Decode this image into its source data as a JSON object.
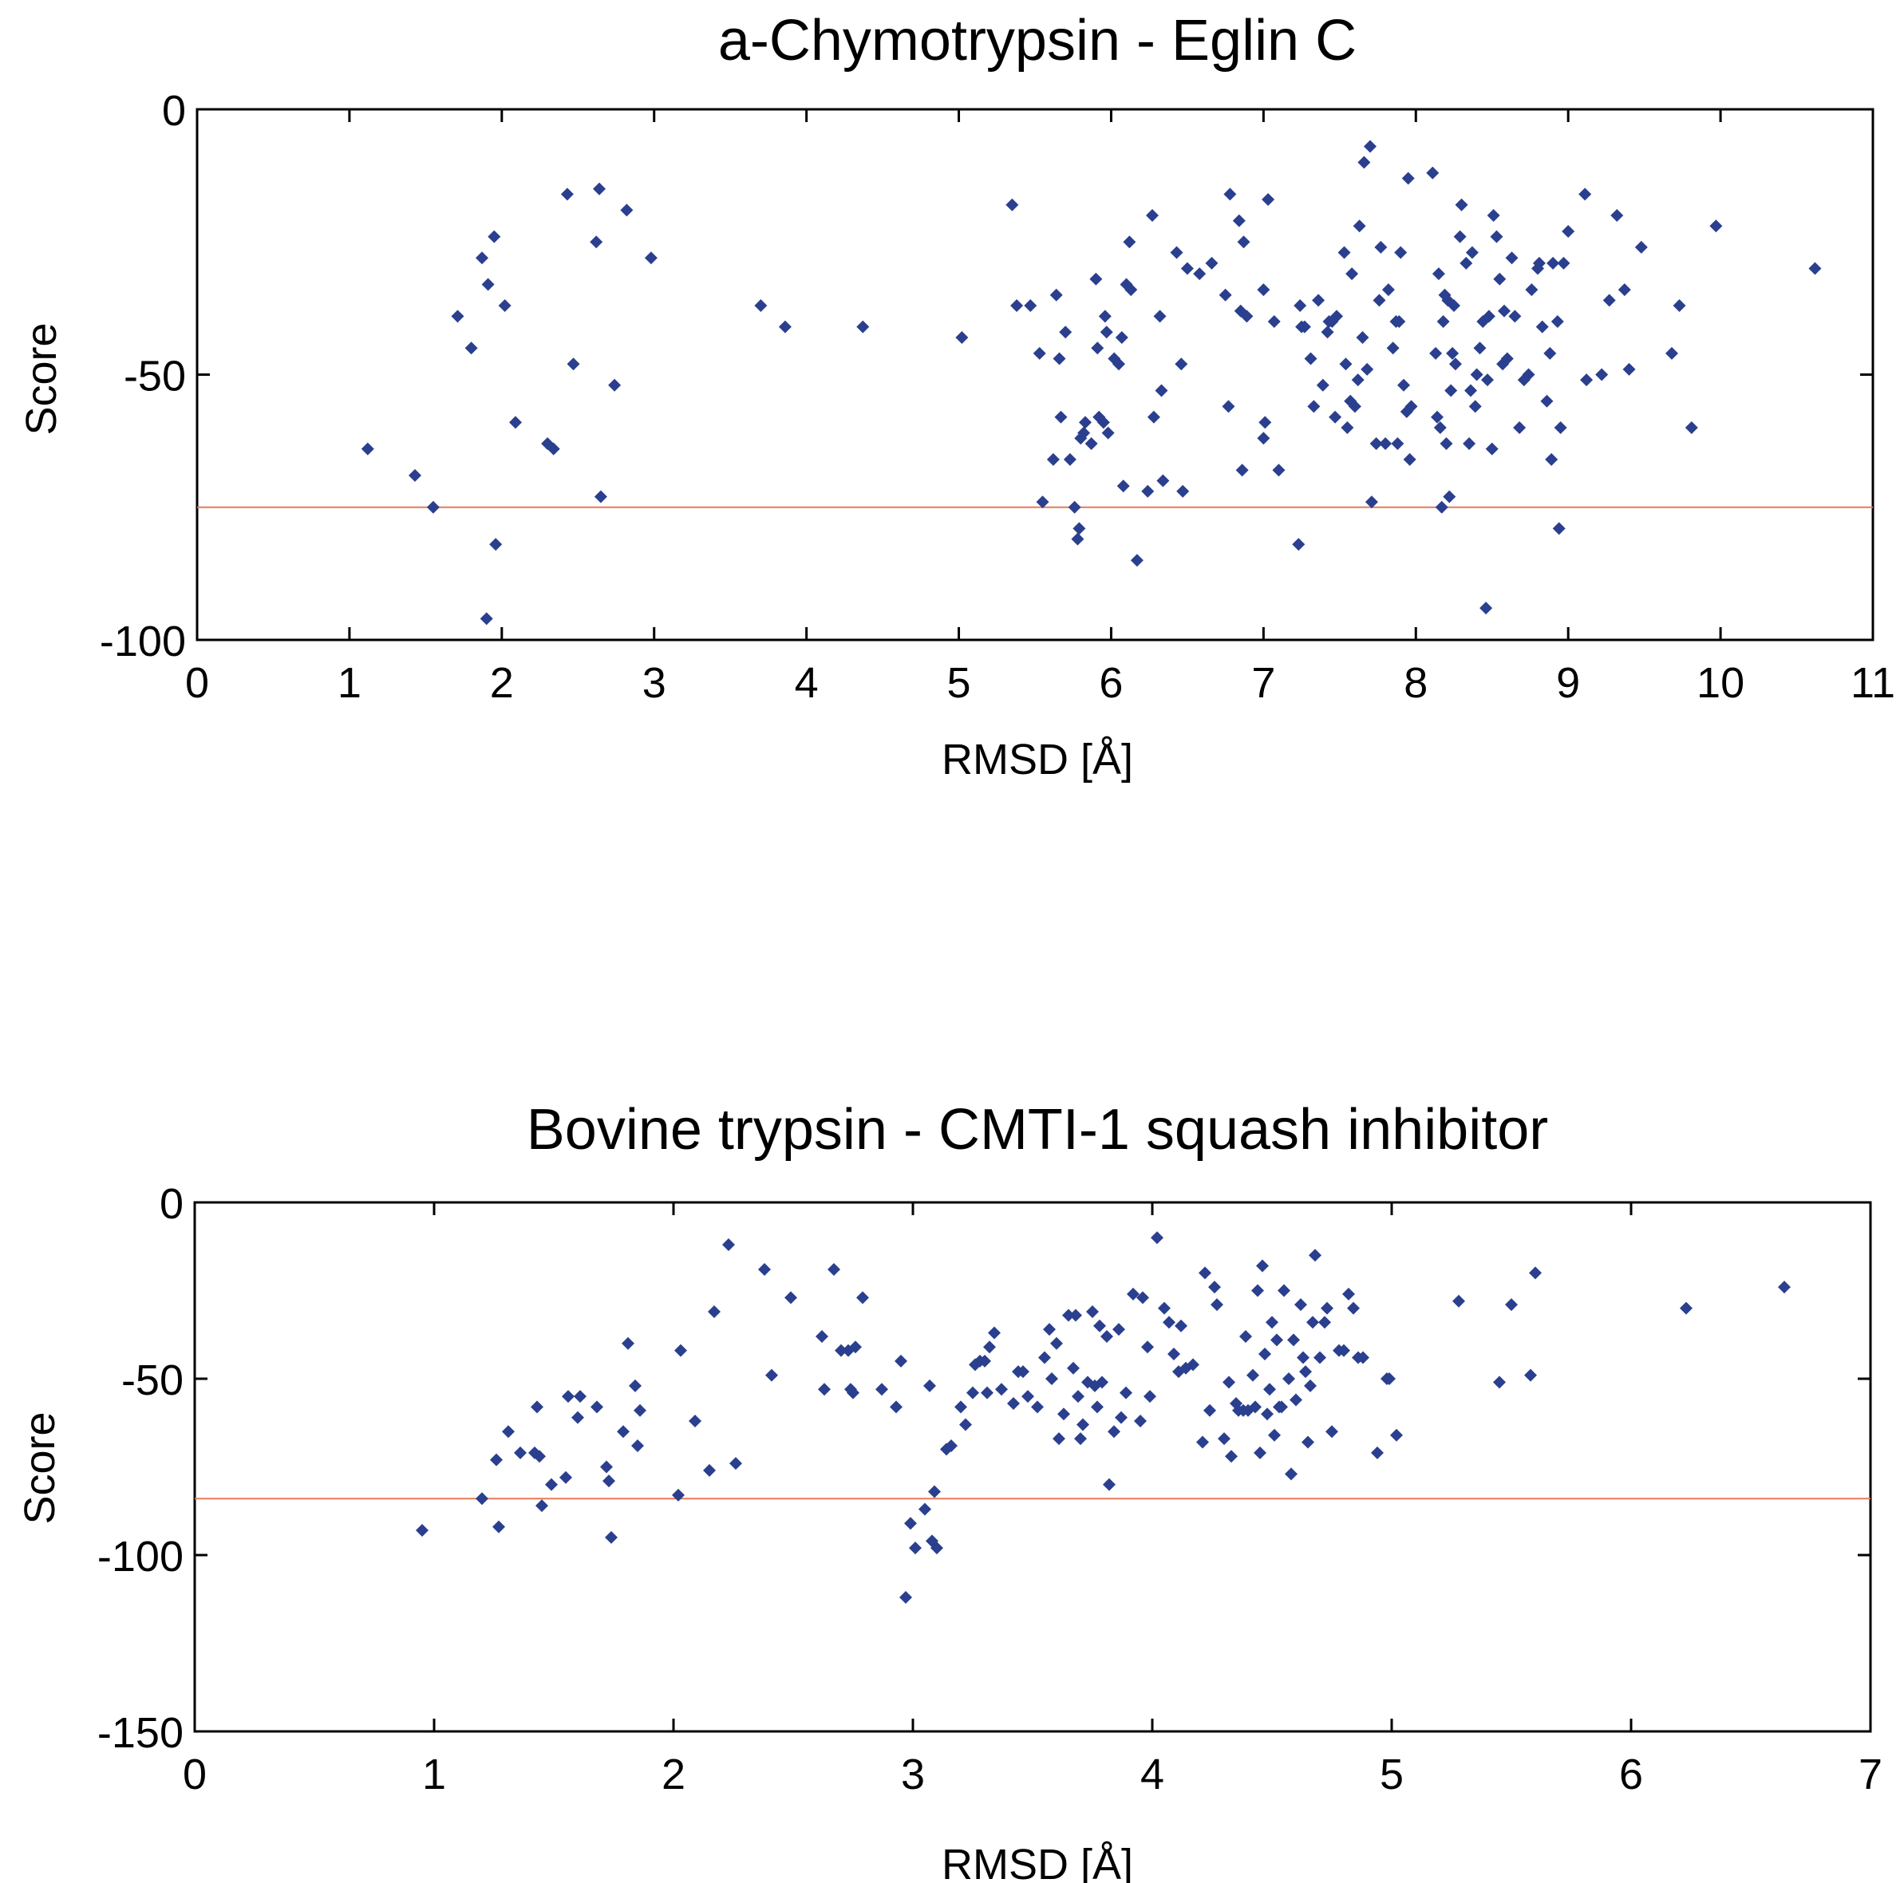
{
  "chart_data": [
    {
      "type": "scatter",
      "title": "a-Chymotrypsin - Eglin C",
      "xlabel": "RMSD [Å]",
      "ylabel": "Score",
      "xlim": [
        0,
        11
      ],
      "ylim": [
        -100,
        0
      ],
      "xticks": [
        0,
        1,
        2,
        3,
        4,
        5,
        6,
        7,
        8,
        9,
        10,
        11
      ],
      "yticks": [
        0,
        -50,
        -100
      ],
      "grid": false,
      "threshold": -75,
      "colors": {
        "points": "#2b3f8f",
        "threshold": "#e87a5a"
      },
      "points": [
        [
          1.12,
          -64
        ],
        [
          1.43,
          -69
        ],
        [
          1.55,
          -75
        ],
        [
          1.71,
          -39
        ],
        [
          1.8,
          -45
        ],
        [
          1.87,
          -28
        ],
        [
          1.9,
          -96
        ],
        [
          1.91,
          -33
        ],
        [
          1.95,
          -24
        ],
        [
          1.96,
          -82
        ],
        [
          2.02,
          -37
        ],
        [
          2.09,
          -59
        ],
        [
          2.3,
          -63
        ],
        [
          2.34,
          -64
        ],
        [
          2.43,
          -16
        ],
        [
          2.47,
          -48
        ],
        [
          2.62,
          -25
        ],
        [
          2.64,
          -15
        ],
        [
          2.65,
          -73
        ],
        [
          2.74,
          -52
        ],
        [
          2.82,
          -19
        ],
        [
          2.98,
          -28
        ],
        [
          3.7,
          -37
        ],
        [
          3.86,
          -41
        ],
        [
          4.37,
          -41
        ],
        [
          5.02,
          -43
        ],
        [
          5.35,
          -18
        ],
        [
          5.38,
          -37
        ],
        [
          5.47,
          -37
        ],
        [
          5.53,
          -46
        ],
        [
          5.55,
          -74
        ],
        [
          5.62,
          -66
        ],
        [
          5.64,
          -35
        ],
        [
          5.66,
          -47
        ],
        [
          5.67,
          -58
        ],
        [
          5.7,
          -42
        ],
        [
          5.73,
          -66
        ],
        [
          5.76,
          -75
        ],
        [
          5.78,
          -81
        ],
        [
          5.79,
          -79
        ],
        [
          5.8,
          -62
        ],
        [
          5.82,
          -61
        ],
        [
          5.83,
          -59
        ],
        [
          5.87,
          -63
        ],
        [
          5.9,
          -32
        ],
        [
          5.91,
          -45
        ],
        [
          5.92,
          -58
        ],
        [
          5.95,
          -59
        ],
        [
          5.96,
          -39
        ],
        [
          5.97,
          -42
        ],
        [
          5.98,
          -61
        ],
        [
          6.02,
          -47
        ],
        [
          6.05,
          -48
        ],
        [
          6.07,
          -43
        ],
        [
          6.08,
          -71
        ],
        [
          6.1,
          -33
        ],
        [
          6.12,
          -25
        ],
        [
          6.13,
          -34
        ],
        [
          6.17,
          -85
        ],
        [
          6.24,
          -72
        ],
        [
          6.27,
          -20
        ],
        [
          6.28,
          -58
        ],
        [
          6.32,
          -39
        ],
        [
          6.33,
          -53
        ],
        [
          6.34,
          -70
        ],
        [
          6.43,
          -27
        ],
        [
          6.46,
          -48
        ],
        [
          6.47,
          -72
        ],
        [
          6.5,
          -30
        ],
        [
          6.58,
          -31
        ],
        [
          6.66,
          -29
        ],
        [
          6.75,
          -35
        ],
        [
          6.77,
          -56
        ],
        [
          6.78,
          -16
        ],
        [
          6.84,
          -21
        ],
        [
          6.85,
          -38
        ],
        [
          6.86,
          -68
        ],
        [
          6.87,
          -25
        ],
        [
          6.89,
          -39
        ],
        [
          7.0,
          -34
        ],
        [
          7.0,
          -62
        ],
        [
          7.01,
          -59
        ],
        [
          7.03,
          -17
        ],
        [
          7.07,
          -40
        ],
        [
          7.1,
          -68
        ],
        [
          7.23,
          -82
        ],
        [
          7.24,
          -37
        ],
        [
          7.25,
          -41
        ],
        [
          7.27,
          -41
        ],
        [
          7.31,
          -47
        ],
        [
          7.33,
          -56
        ],
        [
          7.36,
          -36
        ],
        [
          7.39,
          -52
        ],
        [
          7.42,
          -42
        ],
        [
          7.43,
          -40
        ],
        [
          7.45,
          -40
        ],
        [
          7.47,
          -58
        ],
        [
          7.48,
          -39
        ],
        [
          7.53,
          -27
        ],
        [
          7.54,
          -48
        ],
        [
          7.55,
          -60
        ],
        [
          7.57,
          -55
        ],
        [
          7.58,
          -31
        ],
        [
          7.6,
          -56
        ],
        [
          7.62,
          -51
        ],
        [
          7.63,
          -22
        ],
        [
          7.65,
          -43
        ],
        [
          7.66,
          -10
        ],
        [
          7.68,
          -49
        ],
        [
          7.7,
          -7
        ],
        [
          7.71,
          -74
        ],
        [
          7.74,
          -63
        ],
        [
          7.76,
          -36
        ],
        [
          7.77,
          -26
        ],
        [
          7.8,
          -63
        ],
        [
          7.82,
          -34
        ],
        [
          7.85,
          -45
        ],
        [
          7.87,
          -40
        ],
        [
          7.88,
          -63
        ],
        [
          7.89,
          -40
        ],
        [
          7.9,
          -27
        ],
        [
          7.92,
          -52
        ],
        [
          7.94,
          -57
        ],
        [
          7.95,
          -13
        ],
        [
          7.96,
          -66
        ],
        [
          7.97,
          -56
        ],
        [
          8.11,
          -12
        ],
        [
          8.13,
          -46
        ],
        [
          8.14,
          -58
        ],
        [
          8.15,
          -31
        ],
        [
          8.16,
          -60
        ],
        [
          8.17,
          -75
        ],
        [
          8.18,
          -40
        ],
        [
          8.19,
          -35
        ],
        [
          8.2,
          -63
        ],
        [
          8.21,
          -36
        ],
        [
          8.22,
          -73
        ],
        [
          8.23,
          -53
        ],
        [
          8.24,
          -46
        ],
        [
          8.25,
          -37
        ],
        [
          8.26,
          -48
        ],
        [
          8.29,
          -24
        ],
        [
          8.3,
          -18
        ],
        [
          8.33,
          -29
        ],
        [
          8.35,
          -63
        ],
        [
          8.36,
          -53
        ],
        [
          8.37,
          -27
        ],
        [
          8.39,
          -56
        ],
        [
          8.4,
          -50
        ],
        [
          8.42,
          -45
        ],
        [
          8.44,
          -40
        ],
        [
          8.46,
          -94
        ],
        [
          8.47,
          -51
        ],
        [
          8.48,
          -39
        ],
        [
          8.5,
          -64
        ],
        [
          8.51,
          -20
        ],
        [
          8.53,
          -24
        ],
        [
          8.55,
          -32
        ],
        [
          8.57,
          -48
        ],
        [
          8.58,
          -38
        ],
        [
          8.6,
          -47
        ],
        [
          8.63,
          -28
        ],
        [
          8.65,
          -39
        ],
        [
          8.68,
          -60
        ],
        [
          8.71,
          -51
        ],
        [
          8.74,
          -50
        ],
        [
          8.76,
          -34
        ],
        [
          8.8,
          -30
        ],
        [
          8.81,
          -29
        ],
        [
          8.83,
          -41
        ],
        [
          8.86,
          -55
        ],
        [
          8.88,
          -46
        ],
        [
          8.89,
          -66
        ],
        [
          8.9,
          -29
        ],
        [
          8.93,
          -40
        ],
        [
          8.94,
          -79
        ],
        [
          8.95,
          -60
        ],
        [
          8.97,
          -29
        ],
        [
          9.0,
          -23
        ],
        [
          9.11,
          -16
        ],
        [
          9.12,
          -51
        ],
        [
          9.22,
          -50
        ],
        [
          9.27,
          -36
        ],
        [
          9.32,
          -20
        ],
        [
          9.37,
          -34
        ],
        [
          9.4,
          -49
        ],
        [
          9.48,
          -26
        ],
        [
          9.68,
          -46
        ],
        [
          9.73,
          -37
        ],
        [
          9.81,
          -60
        ],
        [
          9.97,
          -22
        ],
        [
          10.62,
          -30
        ]
      ]
    },
    {
      "type": "scatter",
      "title": "Bovine trypsin - CMTI-1 squash inhibitor",
      "xlabel": "RMSD [Å]",
      "ylabel": "Score",
      "xlim": [
        0,
        7
      ],
      "ylim": [
        -150,
        0
      ],
      "xticks": [
        0,
        1,
        2,
        3,
        4,
        5,
        6,
        7
      ],
      "yticks": [
        0,
        -50,
        -100,
        -150
      ],
      "grid": false,
      "threshold": -84,
      "colors": {
        "points": "#2b3f8f",
        "threshold": "#e87a5a"
      },
      "points": [
        [
          0.95,
          -93
        ],
        [
          1.2,
          -84
        ],
        [
          1.26,
          -73
        ],
        [
          1.27,
          -92
        ],
        [
          1.31,
          -65
        ],
        [
          1.36,
          -71
        ],
        [
          1.42,
          -71
        ],
        [
          1.44,
          -72
        ],
        [
          1.43,
          -58
        ],
        [
          1.45,
          -86
        ],
        [
          1.49,
          -80
        ],
        [
          1.55,
          -78
        ],
        [
          1.56,
          -55
        ],
        [
          1.6,
          -61
        ],
        [
          1.61,
          -55
        ],
        [
          1.68,
          -58
        ],
        [
          1.72,
          -75
        ],
        [
          1.73,
          -79
        ],
        [
          1.74,
          -95
        ],
        [
          1.79,
          -65
        ],
        [
          1.81,
          -40
        ],
        [
          1.84,
          -52
        ],
        [
          1.85,
          -69
        ],
        [
          1.86,
          -59
        ],
        [
          2.02,
          -83
        ],
        [
          2.03,
          -42
        ],
        [
          2.09,
          -62
        ],
        [
          2.15,
          -76
        ],
        [
          2.17,
          -31
        ],
        [
          2.23,
          -12
        ],
        [
          2.26,
          -74
        ],
        [
          2.38,
          -19
        ],
        [
          2.41,
          -49
        ],
        [
          2.49,
          -27
        ],
        [
          2.62,
          -38
        ],
        [
          2.63,
          -53
        ],
        [
          2.67,
          -19
        ],
        [
          2.7,
          -42
        ],
        [
          2.73,
          -42
        ],
        [
          2.74,
          -53
        ],
        [
          2.75,
          -54
        ],
        [
          2.76,
          -41
        ],
        [
          2.79,
          -27
        ],
        [
          2.87,
          -53
        ],
        [
          2.93,
          -58
        ],
        [
          2.95,
          -45
        ],
        [
          2.97,
          -112
        ],
        [
          2.99,
          -91
        ],
        [
          3.01,
          -98
        ],
        [
          3.05,
          -87
        ],
        [
          3.07,
          -52
        ],
        [
          3.08,
          -96
        ],
        [
          3.09,
          -82
        ],
        [
          3.1,
          -98
        ],
        [
          3.14,
          -70
        ],
        [
          3.16,
          -69
        ],
        [
          3.2,
          -58
        ],
        [
          3.22,
          -63
        ],
        [
          3.25,
          -54
        ],
        [
          3.26,
          -46
        ],
        [
          3.28,
          -45
        ],
        [
          3.3,
          -45
        ],
        [
          3.31,
          -54
        ],
        [
          3.32,
          -41
        ],
        [
          3.34,
          -37
        ],
        [
          3.37,
          -53
        ],
        [
          3.42,
          -57
        ],
        [
          3.44,
          -48
        ],
        [
          3.46,
          -48
        ],
        [
          3.48,
          -55
        ],
        [
          3.52,
          -58
        ],
        [
          3.55,
          -44
        ],
        [
          3.57,
          -36
        ],
        [
          3.58,
          -50
        ],
        [
          3.6,
          -40
        ],
        [
          3.61,
          -67
        ],
        [
          3.63,
          -60
        ],
        [
          3.65,
          -32
        ],
        [
          3.67,
          -47
        ],
        [
          3.68,
          -32
        ],
        [
          3.69,
          -55
        ],
        [
          3.7,
          -67
        ],
        [
          3.71,
          -63
        ],
        [
          3.73,
          -51
        ],
        [
          3.75,
          -31
        ],
        [
          3.76,
          -52
        ],
        [
          3.77,
          -58
        ],
        [
          3.78,
          -35
        ],
        [
          3.79,
          -51
        ],
        [
          3.81,
          -38
        ],
        [
          3.82,
          -80
        ],
        [
          3.84,
          -65
        ],
        [
          3.86,
          -36
        ],
        [
          3.87,
          -61
        ],
        [
          3.89,
          -54
        ],
        [
          3.92,
          -26
        ],
        [
          3.95,
          -62
        ],
        [
          3.96,
          -27
        ],
        [
          3.98,
          -41
        ],
        [
          3.99,
          -55
        ],
        [
          4.02,
          -10
        ],
        [
          4.05,
          -30
        ],
        [
          4.07,
          -34
        ],
        [
          4.09,
          -43
        ],
        [
          4.11,
          -48
        ],
        [
          4.12,
          -35
        ],
        [
          4.14,
          -47
        ],
        [
          4.17,
          -46
        ],
        [
          4.21,
          -68
        ],
        [
          4.22,
          -20
        ],
        [
          4.24,
          -59
        ],
        [
          4.26,
          -24
        ],
        [
          4.27,
          -29
        ],
        [
          4.3,
          -67
        ],
        [
          4.32,
          -51
        ],
        [
          4.33,
          -72
        ],
        [
          4.35,
          -57
        ],
        [
          4.36,
          -59
        ],
        [
          4.38,
          -59
        ],
        [
          4.39,
          -38
        ],
        [
          4.4,
          -59
        ],
        [
          4.42,
          -49
        ],
        [
          4.43,
          -58
        ],
        [
          4.44,
          -25
        ],
        [
          4.45,
          -71
        ],
        [
          4.46,
          -18
        ],
        [
          4.47,
          -43
        ],
        [
          4.48,
          -60
        ],
        [
          4.49,
          -53
        ],
        [
          4.5,
          -34
        ],
        [
          4.51,
          -66
        ],
        [
          4.52,
          -39
        ],
        [
          4.53,
          -58
        ],
        [
          4.54,
          -58
        ],
        [
          4.55,
          -25
        ],
        [
          4.57,
          -50
        ],
        [
          4.58,
          -77
        ],
        [
          4.59,
          -39
        ],
        [
          4.6,
          -56
        ],
        [
          4.62,
          -29
        ],
        [
          4.63,
          -44
        ],
        [
          4.64,
          -48
        ],
        [
          4.65,
          -68
        ],
        [
          4.66,
          -52
        ],
        [
          4.67,
          -34
        ],
        [
          4.68,
          -15
        ],
        [
          4.7,
          -44
        ],
        [
          4.72,
          -34
        ],
        [
          4.73,
          -30
        ],
        [
          4.75,
          -65
        ],
        [
          4.78,
          -42
        ],
        [
          4.8,
          -42
        ],
        [
          4.82,
          -26
        ],
        [
          4.84,
          -30
        ],
        [
          4.86,
          -44
        ],
        [
          4.88,
          -44
        ],
        [
          4.94,
          -71
        ],
        [
          4.98,
          -50
        ],
        [
          4.99,
          -50
        ],
        [
          5.02,
          -66
        ],
        [
          5.28,
          -28
        ],
        [
          5.45,
          -51
        ],
        [
          5.5,
          -29
        ],
        [
          5.58,
          -49
        ],
        [
          5.6,
          -20
        ],
        [
          6.23,
          -30
        ],
        [
          6.64,
          -24
        ]
      ]
    }
  ]
}
